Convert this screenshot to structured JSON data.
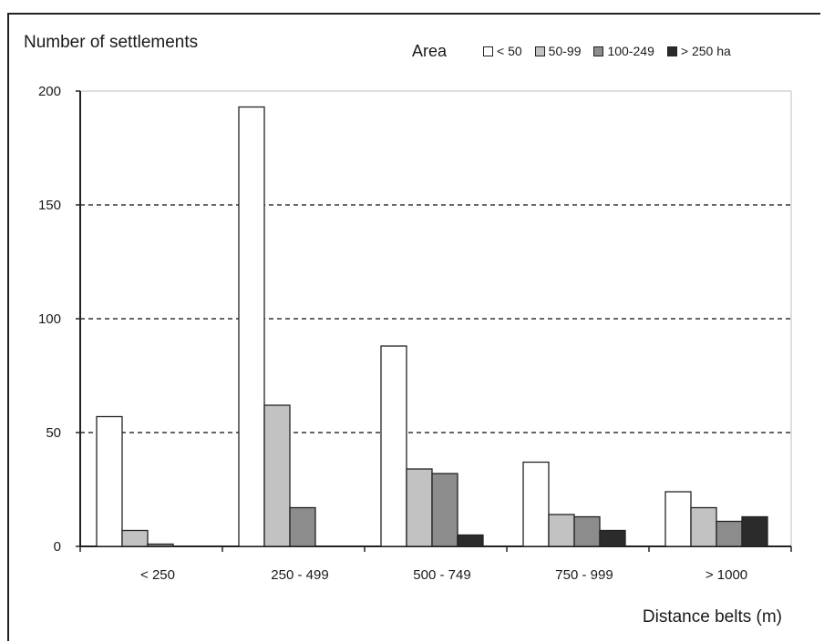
{
  "chart_data": {
    "type": "bar",
    "title": "",
    "ylabel": "Number of settlements",
    "xlabel": "Distance belts (m)",
    "legend_title": "Area",
    "categories": [
      "< 250",
      "250 - 499",
      "500 - 749",
      "750 - 999",
      "> 1000"
    ],
    "series": [
      {
        "name": "< 50",
        "color": "#ffffff",
        "values": [
          57,
          193,
          88,
          37,
          24
        ]
      },
      {
        "name": "50-99",
        "color": "#c2c2c2",
        "values": [
          7,
          62,
          34,
          14,
          17
        ]
      },
      {
        "name": "100-249",
        "color": "#8c8c8c",
        "values": [
          1,
          17,
          32,
          13,
          11
        ]
      },
      {
        "name": "> 250 ha",
        "color": "#2b2b2b",
        "values": [
          0,
          0,
          5,
          7,
          13
        ]
      }
    ],
    "ylim": [
      0,
      200
    ],
    "yticks": [
      0,
      50,
      100,
      150,
      200
    ],
    "grid": "dashed",
    "legend_position": "top-right"
  }
}
